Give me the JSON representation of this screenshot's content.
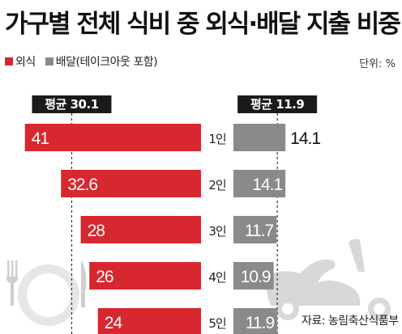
{
  "title": "가구별 전체 식비 중 외식·배달 지출 비중",
  "unit": "단위: %",
  "source": "자료: 농림축산식품부",
  "chart_data": {
    "type": "bar",
    "categories": [
      "1인",
      "2인",
      "3인",
      "4인",
      "5인"
    ],
    "series": [
      {
        "name": "외식",
        "values": [
          41,
          32.6,
          28,
          26,
          24
        ],
        "color": "#d7282f"
      },
      {
        "name": "배달(테이크아웃 포함)",
        "values": [
          14.1,
          14.1,
          11.7,
          10.9,
          11.9
        ],
        "color": "#8a8a8a"
      }
    ],
    "averages": [
      {
        "label": "평균 30.1",
        "value": 30.1
      },
      {
        "label": "평균 11.9",
        "value": 11.9
      }
    ],
    "value_labels": [
      [
        "41",
        "32.6",
        "28",
        "26",
        "24"
      ],
      [
        "14.1",
        "14.1",
        "11.7",
        "10.9",
        "11.9"
      ]
    ],
    "legend_position": "top-left",
    "grid": false
  },
  "icons": [
    "fork-icon",
    "plate-icon",
    "knife-icon",
    "scooter-icon"
  ]
}
